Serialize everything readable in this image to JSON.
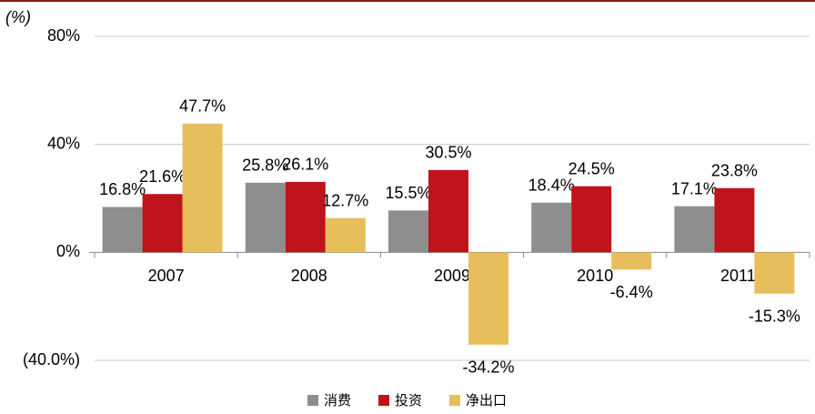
{
  "chart_data": {
    "type": "bar",
    "unit_label": "(%)",
    "categories": [
      "2007",
      "2008",
      "2009",
      "2010",
      "2011"
    ],
    "series": [
      {
        "name": "消费",
        "color": "#8e8e8e",
        "values": [
          16.8,
          25.8,
          15.5,
          18.4,
          17.1
        ],
        "value_labels": [
          "16.8%",
          "25.8%",
          "15.5%",
          "18.4%",
          "17.1%"
        ]
      },
      {
        "name": "投资",
        "color": "#c0141c",
        "values": [
          21.6,
          26.1,
          30.5,
          24.5,
          23.8
        ],
        "value_labels": [
          "21.6%",
          "26.1%",
          "30.5%",
          "24.5%",
          "23.8%"
        ]
      },
      {
        "name": "净出口",
        "color": "#e6bf5c",
        "values": [
          47.7,
          12.7,
          -34.2,
          -6.4,
          -15.3
        ],
        "value_labels": [
          "47.7%",
          "12.7%",
          "-34.2%",
          "-6.4%",
          "-15.3%"
        ]
      }
    ],
    "ylim": [
      -40,
      80
    ],
    "yticks": [
      {
        "value": -40,
        "label": "(40.0%)"
      },
      {
        "value": 0,
        "label": "0%"
      },
      {
        "value": 40,
        "label": "40%"
      },
      {
        "value": 80,
        "label": "80%"
      }
    ],
    "grid": true
  }
}
